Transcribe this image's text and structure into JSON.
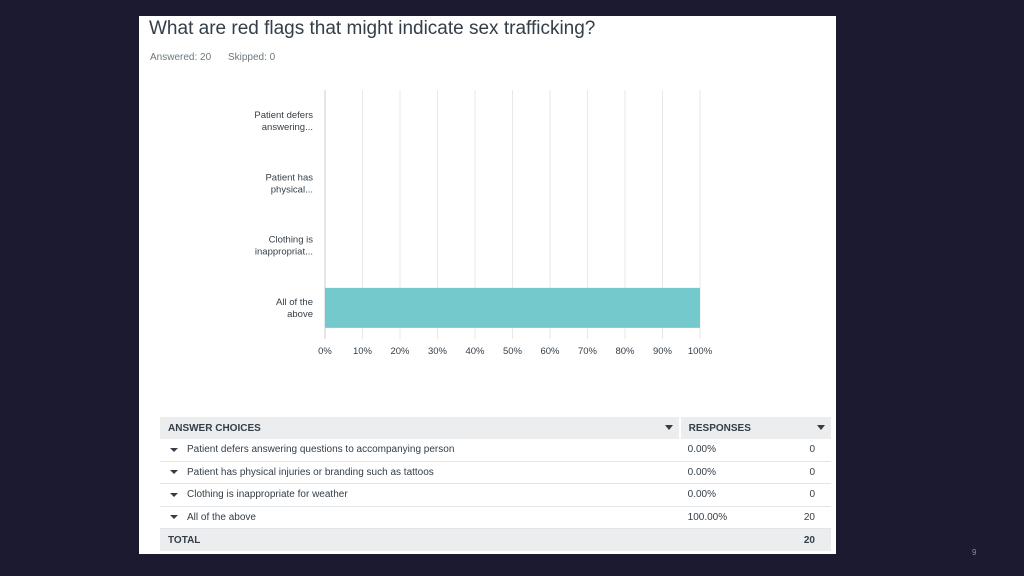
{
  "question": {
    "title": "What are red flags that might indicate sex trafficking?",
    "answered_label": "Answered: 20",
    "skipped_label": "Skipped: 0"
  },
  "chart_data": {
    "type": "bar",
    "orientation": "horizontal",
    "categories": [
      [
        "Patient defers",
        "answering..."
      ],
      [
        "Patient has",
        "physical..."
      ],
      [
        "Clothing is",
        "inappropriat..."
      ],
      [
        "All of the",
        "above"
      ]
    ],
    "values": [
      0,
      0,
      0,
      100
    ],
    "xlim": [
      0,
      100
    ],
    "xticks": [
      "0%",
      "10%",
      "20%",
      "30%",
      "40%",
      "50%",
      "60%",
      "70%",
      "80%",
      "90%",
      "100%"
    ],
    "grid": true,
    "bar_color": "#73c9cc"
  },
  "table": {
    "headers": {
      "choice": "ANSWER CHOICES",
      "responses": "RESPONSES"
    },
    "rows": [
      {
        "choice": "Patient defers answering questions to accompanying person",
        "pct": "0.00%",
        "count": "0"
      },
      {
        "choice": "Patient has physical injuries or branding such as tattoos",
        "pct": "0.00%",
        "count": "0"
      },
      {
        "choice": "Clothing is inappropriate for weather",
        "pct": "0.00%",
        "count": "0"
      },
      {
        "choice": "All of the above",
        "pct": "100.00%",
        "count": "20"
      }
    ],
    "total_label": "TOTAL",
    "total_count": "20"
  },
  "page_number": "9"
}
